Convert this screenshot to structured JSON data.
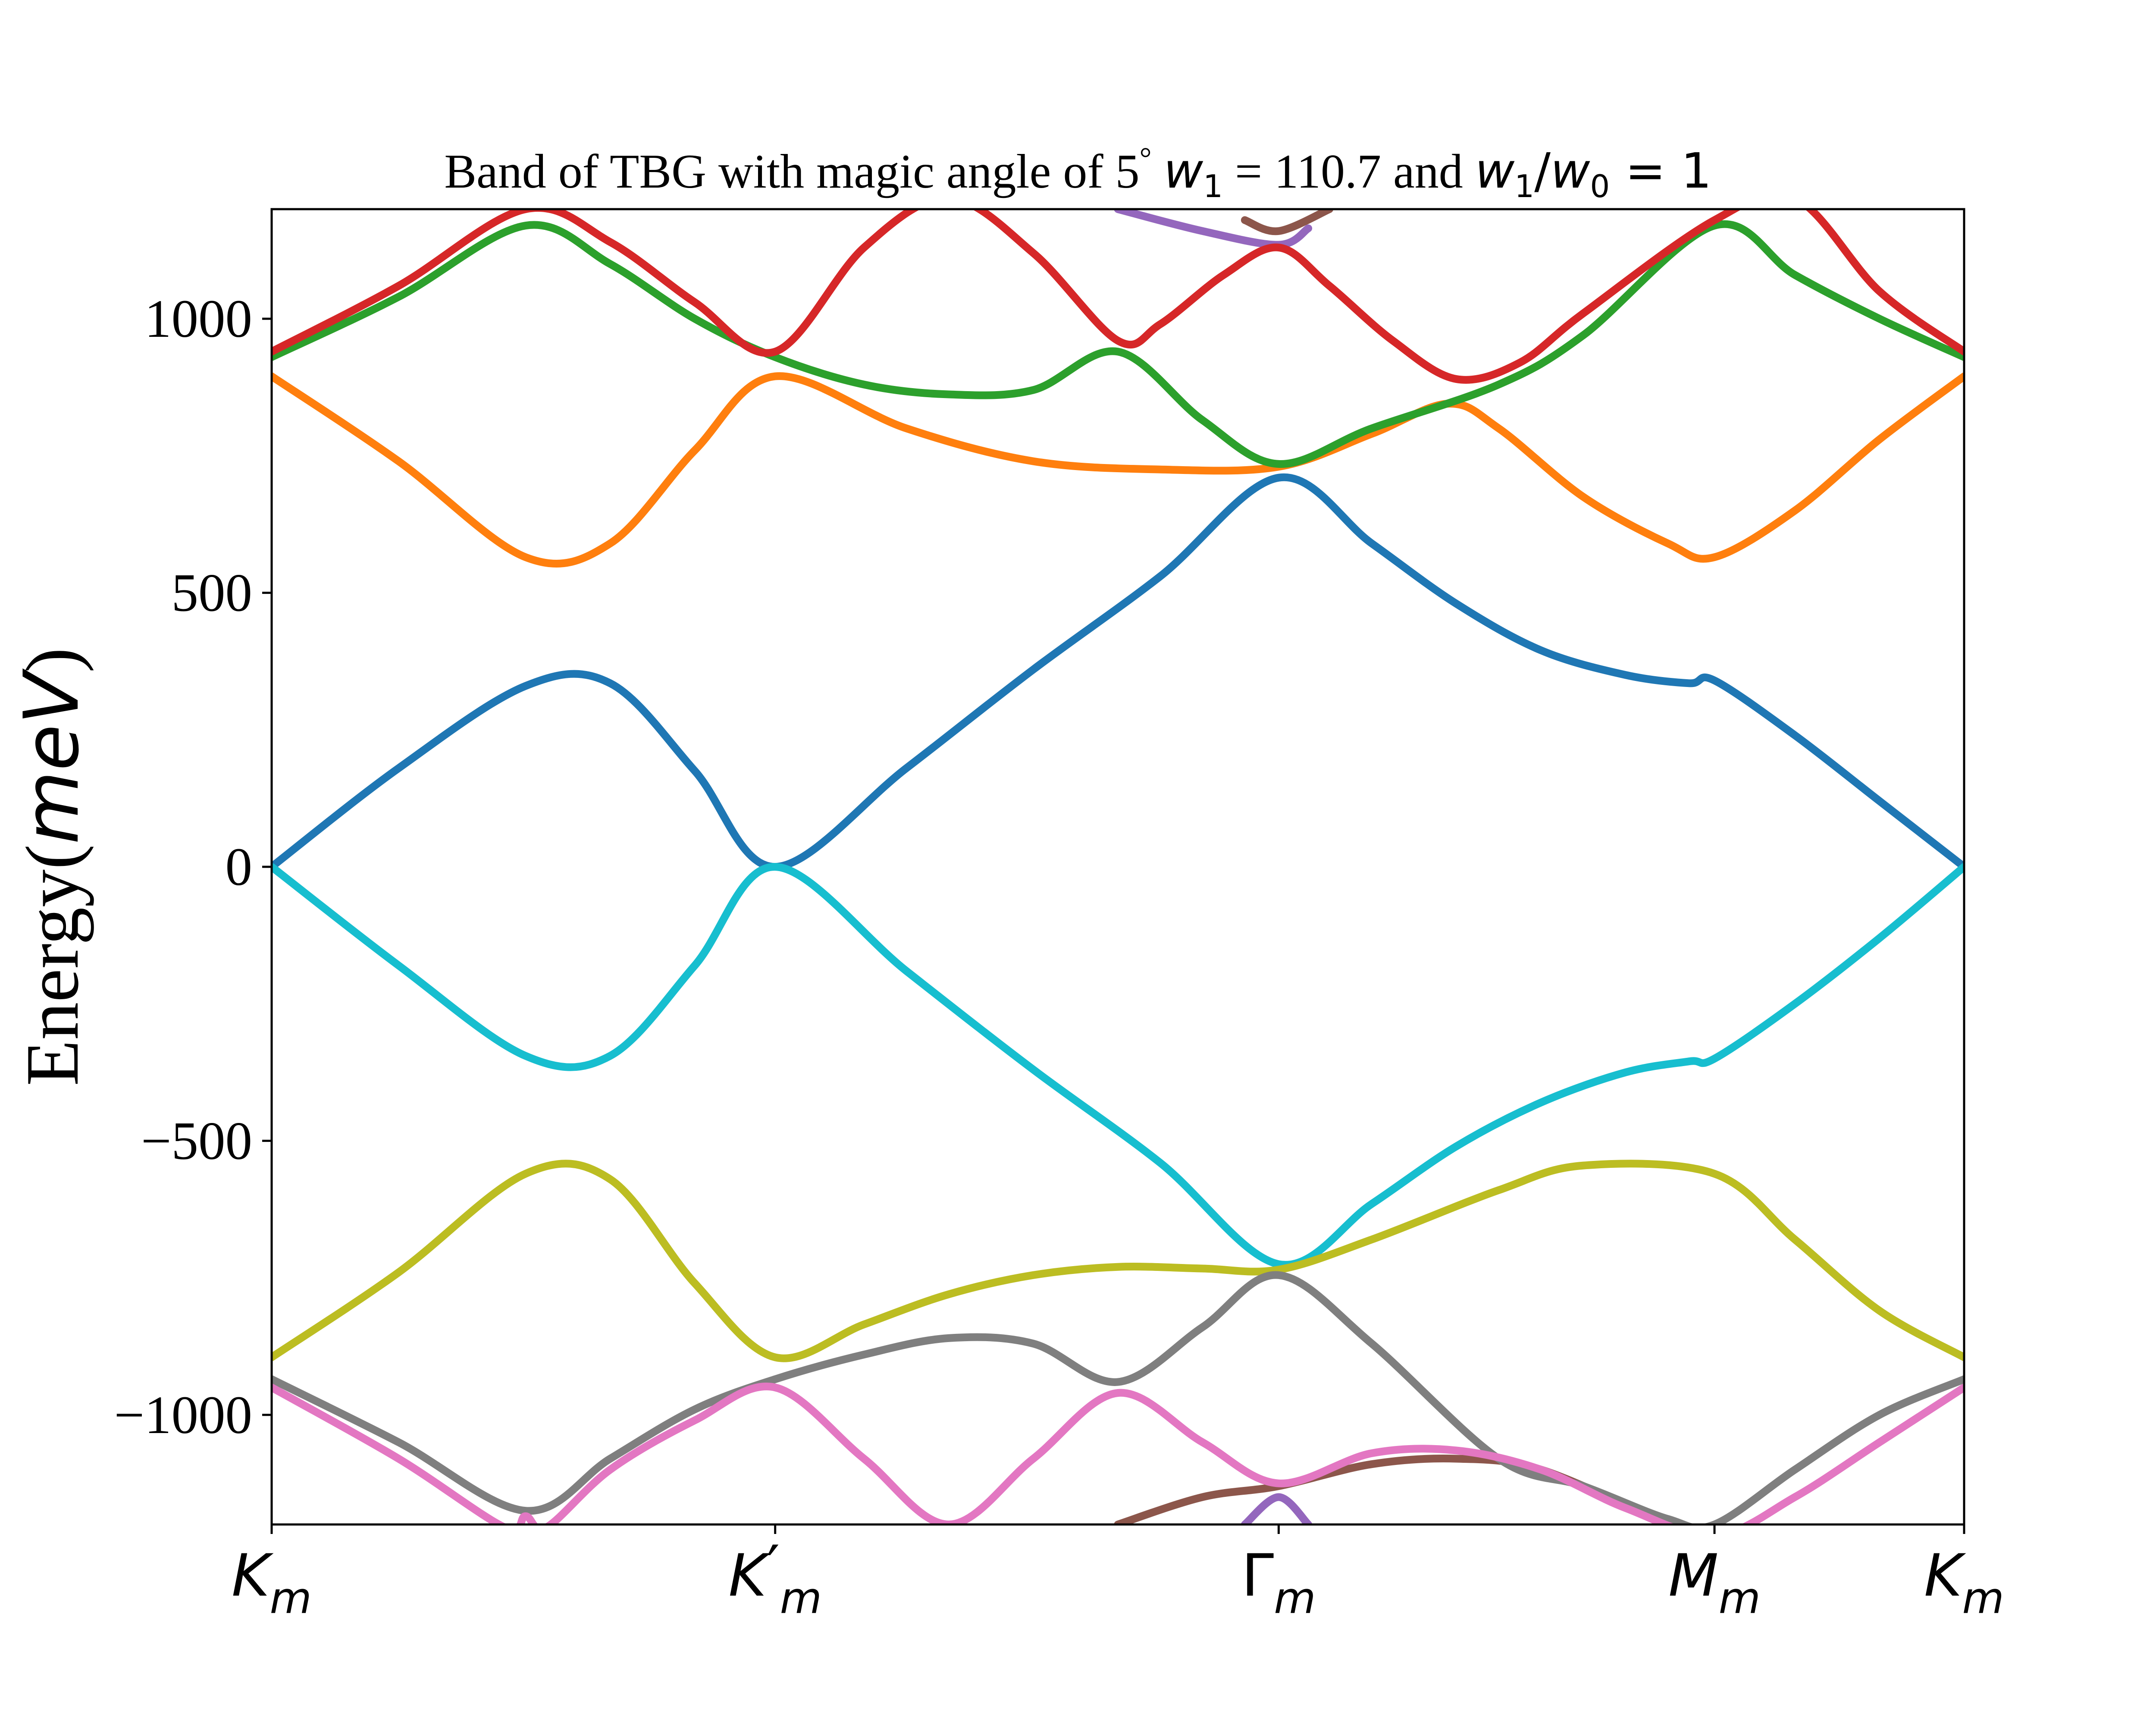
{
  "chart_data": {
    "type": "line",
    "title": {
      "text": "Band of TBG with magic angle of 5",
      "degree": "°",
      "w1_label": "w",
      "w1_sub": "1",
      "w1_value": "= 110.7 and",
      "ratio_num": "w",
      "ratio_num_sub": "1",
      "ratio_slash": "/",
      "ratio_den": "w",
      "ratio_den_sub": "0",
      "ratio_value": "= 1"
    },
    "ylabel": {
      "prefix": "Energy(",
      "unit": "meV",
      "suffix": ")"
    },
    "xlabel": "",
    "xlim": [
      0,
      4
    ],
    "ylim": [
      -1200,
      1200
    ],
    "yticks": [
      {
        "value": 1000,
        "label": "1000"
      },
      {
        "value": 500,
        "label": "500"
      },
      {
        "value": 0,
        "label": "0"
      },
      {
        "value": -500,
        "label": "−500"
      },
      {
        "value": -1000,
        "label": "−1000"
      }
    ],
    "xticks": [
      {
        "value": 0,
        "base": "K",
        "sub": "m",
        "prime": ""
      },
      {
        "value": 1.19,
        "base": "K",
        "sub": "m",
        "prime": "′"
      },
      {
        "value": 2.38,
        "base": "Γ",
        "sub": "m",
        "prime": ""
      },
      {
        "value": 3.41,
        "base": "M",
        "sub": "m",
        "prime": ""
      },
      {
        "value": 4.0,
        "base": "K",
        "sub": "m",
        "prime": ""
      }
    ],
    "grid": false,
    "legend": "none",
    "series": [
      {
        "color": "#1f77b4",
        "x": [
          0,
          0.3,
          0.6,
          0.8,
          1.0,
          1.19,
          1.5,
          1.8,
          2.1,
          2.38,
          2.6,
          2.8,
          3.0,
          3.2,
          3.35,
          3.41,
          3.6,
          3.8,
          4.0
        ],
        "y": [
          0,
          180,
          330,
          335,
          175,
          0,
          180,
          360,
          530,
          710,
          590,
          480,
          395,
          350,
          335,
          340,
          240,
          120,
          0
        ]
      },
      {
        "color": "#17becf",
        "x": [
          0,
          0.3,
          0.6,
          0.8,
          1.0,
          1.19,
          1.5,
          1.8,
          2.1,
          2.38,
          2.6,
          2.8,
          3.0,
          3.2,
          3.35,
          3.41,
          3.6,
          3.8,
          4.0
        ],
        "y": [
          0,
          -180,
          -345,
          -345,
          -180,
          0,
          -190,
          -370,
          -540,
          -725,
          -615,
          -510,
          -430,
          -375,
          -355,
          -350,
          -250,
          -130,
          0
        ]
      },
      {
        "color": "#ff7f0e",
        "x": [
          0,
          0.3,
          0.6,
          0.8,
          1.0,
          1.19,
          1.5,
          1.8,
          2.1,
          2.38,
          2.6,
          2.78,
          2.9,
          3.1,
          3.3,
          3.41,
          3.6,
          3.8,
          4.0
        ],
        "y": [
          895,
          740,
          565,
          590,
          760,
          895,
          800,
          740,
          725,
          730,
          790,
          845,
          800,
          675,
          590,
          565,
          650,
          780,
          895
        ]
      },
      {
        "color": "#2ca02c",
        "x": [
          0,
          0.3,
          0.6,
          0.8,
          1.0,
          1.19,
          1.4,
          1.6,
          1.8,
          2.0,
          2.2,
          2.38,
          2.6,
          2.9,
          3.1,
          3.41,
          3.6,
          3.8,
          4.0
        ],
        "y": [
          930,
          1040,
          1170,
          1100,
          1000,
          930,
          880,
          862,
          870,
          940,
          815,
          735,
          800,
          880,
          970,
          1170,
          1080,
          1000,
          930
        ]
      },
      {
        "color": "#d62728",
        "x": [
          0,
          0.3,
          0.6,
          0.8,
          1.0,
          1.19,
          1.4,
          1.6,
          1.8,
          2.0,
          2.1,
          2.25,
          2.38,
          2.5,
          2.65,
          2.8,
          2.95,
          3.1,
          3.41,
          3.6,
          3.8,
          4.0
        ],
        "y": [
          940,
          1060,
          1200,
          1140,
          1030,
          940,
          1130,
          1220,
          1120,
          960,
          990,
          1080,
          1130,
          1060,
          960,
          890,
          920,
          1010,
          1180,
          1220,
          1050,
          940
        ]
      },
      {
        "color": "#bcbd22",
        "x": [
          0,
          0.3,
          0.6,
          0.8,
          1.0,
          1.19,
          1.4,
          1.6,
          1.8,
          2.0,
          2.2,
          2.38,
          2.6,
          2.9,
          3.1,
          3.41,
          3.6,
          3.8,
          4.0
        ],
        "y": [
          -895,
          -740,
          -560,
          -570,
          -760,
          -895,
          -835,
          -780,
          -745,
          -730,
          -733,
          -735,
          -680,
          -590,
          -545,
          -560,
          -680,
          -810,
          -895
        ]
      },
      {
        "color": "#7f7f7f",
        "x": [
          0,
          0.3,
          0.6,
          0.8,
          1.0,
          1.19,
          1.4,
          1.6,
          1.8,
          2.0,
          2.2,
          2.38,
          2.6,
          2.9,
          3.1,
          3.3,
          3.41,
          3.6,
          3.8,
          4.0
        ],
        "y": [
          -935,
          -1050,
          -1175,
          -1080,
          -990,
          -935,
          -890,
          -860,
          -870,
          -940,
          -840,
          -745,
          -870,
          -1080,
          -1130,
          -1190,
          -1200,
          -1100,
          -1000,
          -935
        ]
      },
      {
        "color": "#e377c2",
        "x": [
          0,
          0.3,
          0.55,
          0.6,
          0.65,
          0.8,
          1.0,
          1.19,
          1.4,
          1.6,
          1.8,
          2.0,
          2.2,
          2.38,
          2.6,
          2.8,
          3.0,
          3.2,
          3.41,
          3.6,
          3.8,
          4.0
        ],
        "y": [
          -950,
          -1080,
          -1205,
          -1185,
          -1205,
          -1100,
          -1010,
          -950,
          -1080,
          -1200,
          -1080,
          -960,
          -1050,
          -1125,
          -1070,
          -1065,
          -1100,
          -1170,
          -1220,
          -1150,
          -1050,
          -950
        ]
      }
    ],
    "stubs": [
      {
        "color": "#9467bd",
        "x": [
          2.0,
          2.2,
          2.38,
          2.45
        ],
        "y": [
          1200,
          1160,
          1135,
          1165
        ]
      },
      {
        "color": "#8c564b",
        "x": [
          2.3,
          2.38,
          2.5
        ],
        "y": [
          1180,
          1160,
          1200
        ]
      },
      {
        "color": "#9467bd",
        "x": [
          2.3,
          2.38,
          2.45
        ],
        "y": [
          -1200,
          -1150,
          -1200
        ]
      },
      {
        "color": "#8c564b",
        "x": [
          2.0,
          2.2,
          2.38,
          2.6,
          2.8,
          3.0,
          3.3
        ],
        "y": [
          -1200,
          -1150,
          -1130,
          -1090,
          -1080,
          -1100,
          -1200
        ]
      }
    ]
  }
}
